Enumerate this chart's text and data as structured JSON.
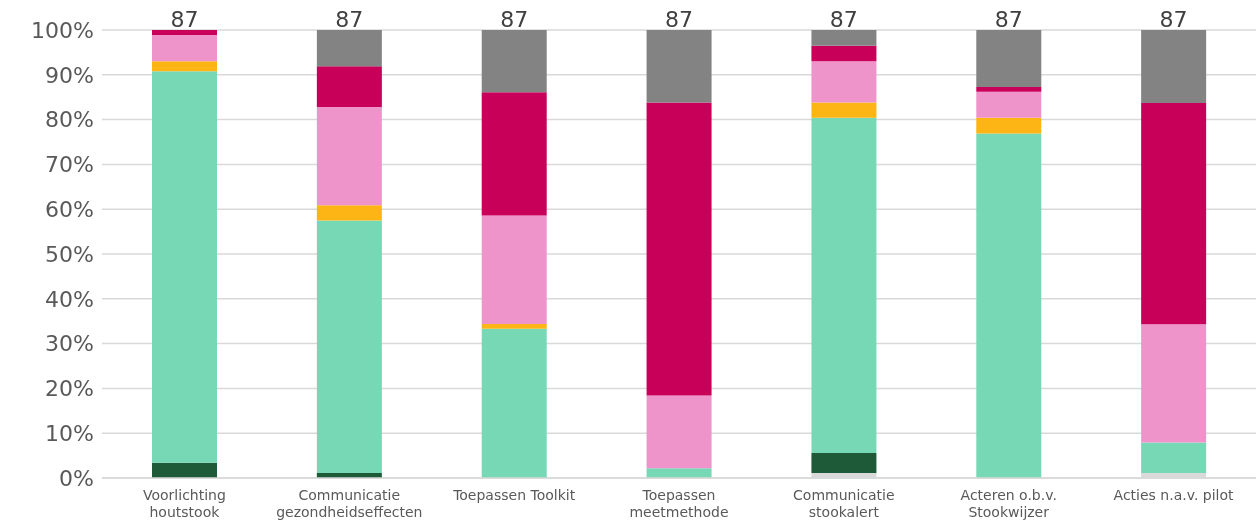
{
  "chart_data": {
    "type": "bar",
    "stacked": true,
    "categories": [
      "Voorlichting houtstook",
      "Communicatie gezondheidseffecten",
      "Toepassen Toolkit",
      "Toepassen meetmethode",
      "Communicatie stookalert",
      "Acteren o.b.v. Stookwijzer",
      "Acties n.a.v. pilot"
    ],
    "series": [
      {
        "color": "#d9d9d9",
        "values": [
          0,
          0,
          0,
          0,
          1.1,
          0,
          1.1
        ]
      },
      {
        "color": "#1e5a38",
        "values": [
          3.4,
          1.1,
          0,
          0,
          4.5,
          0,
          0
        ]
      },
      {
        "color": "#77d8b6",
        "values": [
          87.4,
          56.4,
          33.3,
          2.2,
          74.8,
          76.9,
          6.8
        ]
      },
      {
        "color": "#fdb515",
        "values": [
          2.2,
          3.4,
          1.1,
          0,
          3.4,
          3.5,
          0
        ]
      },
      {
        "color": "#ef93cb",
        "values": [
          5.9,
          21.9,
          24.2,
          16.2,
          9.2,
          5.8,
          26.4
        ]
      },
      {
        "color": "#c8005a",
        "values": [
          1.1,
          9.1,
          27.5,
          65.4,
          3.5,
          1.1,
          49.4
        ]
      },
      {
        "color": "#838383",
        "values": [
          0,
          8.1,
          13.9,
          16.2,
          3.5,
          12.7,
          16.3
        ]
      }
    ],
    "annotations": [
      {
        "text": "87",
        "x": "Voorlichting houtstook",
        "y": 100
      },
      {
        "text": "87",
        "x": "Communicatie gezondheidseffecten",
        "y": 100
      },
      {
        "text": "87",
        "x": "Toepassen Toolkit",
        "y": 100
      },
      {
        "text": "87",
        "x": "Toepassen meetmethode",
        "y": 100
      },
      {
        "text": "87",
        "x": "Communicatie stookalert",
        "y": 100
      },
      {
        "text": "87",
        "x": "Acteren o.b.v. Stookwijzer",
        "y": 100
      },
      {
        "text": "87",
        "x": "Acties n.a.v. pilot",
        "y": 100
      }
    ],
    "ylim": [
      0,
      100
    ],
    "yticks": [
      {
        "value": 0,
        "label": "0%"
      },
      {
        "value": 10,
        "label": "10%"
      },
      {
        "value": 20,
        "label": "20%"
      },
      {
        "value": 30,
        "label": "30%"
      },
      {
        "value": 40,
        "label": "40%"
      },
      {
        "value": 50,
        "label": "50%"
      },
      {
        "value": 60,
        "label": "60%"
      },
      {
        "value": 70,
        "label": "70%"
      },
      {
        "value": 80,
        "label": "80%"
      },
      {
        "value": 90,
        "label": "90%"
      },
      {
        "value": 100,
        "label": "100%"
      }
    ],
    "grid": "y",
    "legend": false
  }
}
